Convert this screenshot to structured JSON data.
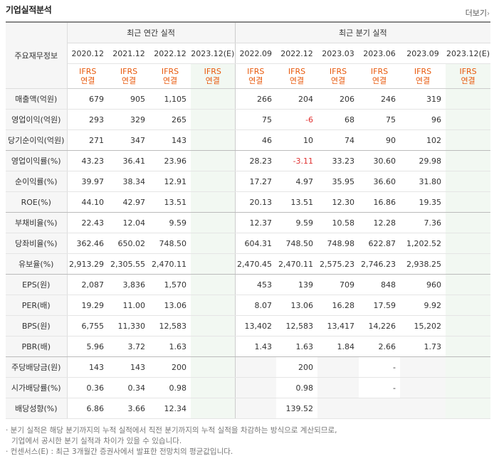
{
  "title": "기업실적분석",
  "more_label": "더보기",
  "corner_label": "주요재무정보",
  "group_annual": "최근 연간 실적",
  "group_quarter": "최근 분기 실적",
  "periods": [
    "2020.12",
    "2021.12",
    "2022.12",
    "2023.12(E)",
    "2022.09",
    "2022.12",
    "2023.03",
    "2023.06",
    "2023.09",
    "2023.12(E)"
  ],
  "ifrs": [
    "IFRS",
    "IFRS",
    "IFRS",
    "IFRS",
    "IFRS",
    "IFRS",
    "IFRS",
    "IFRS",
    "IFRS",
    "IFRS"
  ],
  "consol": [
    "연결",
    "연결",
    "연결",
    "연결",
    "연결",
    "연결",
    "연결",
    "연결",
    "연결",
    "연결"
  ],
  "rows": [
    {
      "label": "매출액(억원)",
      "values": [
        "679",
        "905",
        "1,105",
        "",
        "266",
        "204",
        "206",
        "246",
        "319",
        ""
      ]
    },
    {
      "label": "영업이익(억원)",
      "values": [
        "293",
        "329",
        "265",
        "",
        "75",
        "-6",
        "68",
        "75",
        "96",
        ""
      ]
    },
    {
      "label": "당기순이익(억원)",
      "values": [
        "271",
        "347",
        "143",
        "",
        "46",
        "10",
        "74",
        "90",
        "102",
        ""
      ]
    },
    {
      "label": "영업이익률(%)",
      "values": [
        "43.23",
        "36.41",
        "23.96",
        "",
        "28.23",
        "-3.11",
        "33.23",
        "30.60",
        "29.98",
        ""
      ]
    },
    {
      "label": "순이익률(%)",
      "values": [
        "39.97",
        "38.34",
        "12.91",
        "",
        "17.27",
        "4.97",
        "35.95",
        "36.60",
        "31.80",
        ""
      ]
    },
    {
      "label": "ROE(%)",
      "values": [
        "44.10",
        "42.97",
        "13.51",
        "",
        "20.13",
        "13.51",
        "12.30",
        "16.86",
        "19.35",
        ""
      ]
    },
    {
      "label": "부채비율(%)",
      "values": [
        "22.43",
        "12.04",
        "9.59",
        "",
        "12.37",
        "9.59",
        "10.58",
        "12.28",
        "7.36",
        ""
      ]
    },
    {
      "label": "당좌비율(%)",
      "values": [
        "362.46",
        "650.02",
        "748.50",
        "",
        "604.31",
        "748.50",
        "748.98",
        "622.87",
        "1,202.52",
        ""
      ]
    },
    {
      "label": "유보율(%)",
      "values": [
        "2,913.29",
        "2,305.55",
        "2,470.11",
        "",
        "2,470.45",
        "2,470.11",
        "2,575.23",
        "2,746.23",
        "2,938.25",
        ""
      ]
    },
    {
      "label": "EPS(원)",
      "values": [
        "2,087",
        "3,836",
        "1,570",
        "",
        "453",
        "139",
        "709",
        "848",
        "960",
        ""
      ]
    },
    {
      "label": "PER(배)",
      "values": [
        "19.29",
        "11.00",
        "13.06",
        "",
        "8.07",
        "13.06",
        "16.28",
        "17.59",
        "9.92",
        ""
      ]
    },
    {
      "label": "BPS(원)",
      "values": [
        "6,755",
        "11,330",
        "12,583",
        "",
        "13,402",
        "12,583",
        "13,417",
        "14,226",
        "15,202",
        ""
      ]
    },
    {
      "label": "PBR(배)",
      "values": [
        "5.96",
        "3.72",
        "1.63",
        "",
        "1.43",
        "1.63",
        "1.84",
        "2.66",
        "1.73",
        ""
      ]
    },
    {
      "label": "주당배당금(원)",
      "values": [
        "143",
        "143",
        "200",
        "",
        "",
        "200",
        "",
        "-",
        "",
        ""
      ]
    },
    {
      "label": "시가배당률(%)",
      "values": [
        "0.36",
        "0.34",
        "0.98",
        "",
        "",
        "0.98",
        "",
        "-",
        "",
        ""
      ]
    },
    {
      "label": "배당성향(%)",
      "values": [
        "6.86",
        "3.66",
        "12.34",
        "",
        "",
        "139.52",
        "",
        "",
        "",
        ""
      ]
    }
  ],
  "notes": [
    "· 분기 실적은 해당 분기까지의 누적 실적에서 직전 분기까지의 누적 실적을 차감하는 방식으로 계산되므로,",
    "  기업에서 공시한 분기 실적과 차이가 있을 수 있습니다.",
    "· 컨센서스(E) : 최근 3개월간 증권사에서 발표한 전망치의 평균값입니다."
  ]
}
